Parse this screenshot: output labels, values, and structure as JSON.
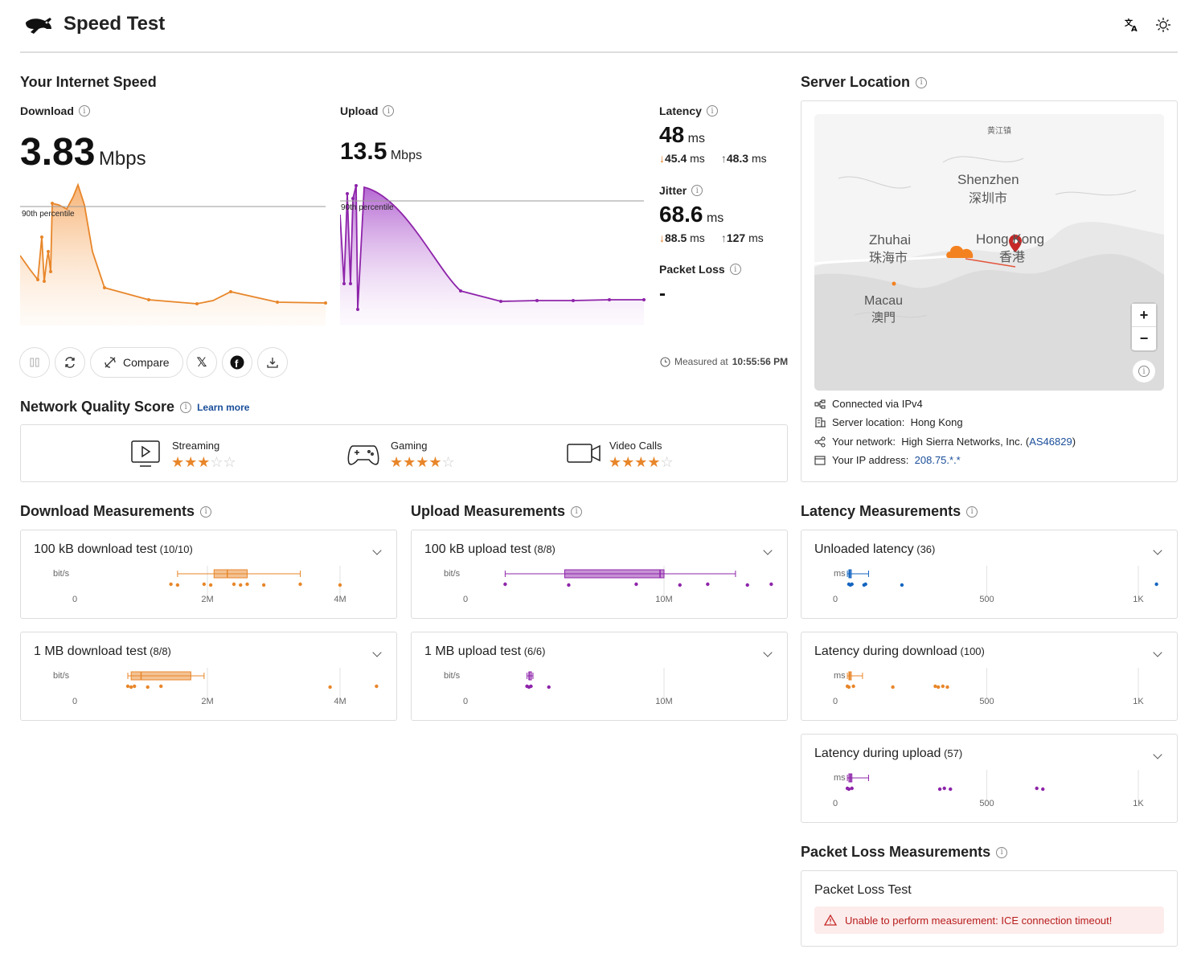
{
  "header": {
    "title": "Speed Test",
    "translate_icon": "translate-icon",
    "theme_icon": "sun-icon"
  },
  "speed": {
    "section_title": "Your Internet Speed",
    "download": {
      "label": "Download",
      "value": "3.83",
      "unit": "Mbps",
      "percentile_label": "90th percentile",
      "color": "#e8862a"
    },
    "upload": {
      "label": "Upload",
      "value": "13.5",
      "unit": "Mbps",
      "percentile_label": "90th percentile",
      "color": "#8e24aa"
    },
    "latency": {
      "label": "Latency",
      "value": "48",
      "unit": "ms",
      "down_value": "45.4",
      "down_unit": "ms",
      "up_value": "48.3",
      "up_unit": "ms"
    },
    "jitter": {
      "label": "Jitter",
      "value": "68.6",
      "unit": "ms",
      "down_value": "88.5",
      "down_unit": "ms",
      "up_value": "127",
      "up_unit": "ms"
    },
    "packet_loss": {
      "label": "Packet Loss",
      "value": "-"
    },
    "measured_prefix": "Measured at",
    "measured_time": "10:55:56 PM"
  },
  "actions": {
    "compare_label": "Compare"
  },
  "network_quality": {
    "title": "Network Quality Score",
    "learn_more": "Learn more",
    "items": [
      {
        "label": "Streaming",
        "stars": 3
      },
      {
        "label": "Gaming",
        "stars": 4
      },
      {
        "label": "Video Calls",
        "stars": 4
      }
    ]
  },
  "server": {
    "title": "Server Location",
    "map_labels": {
      "top": "黄江镇",
      "shenzhen": "Shenzhen",
      "shenzhen_cn": "深圳市",
      "zhuhai": "Zhuhai",
      "zhuhai_cn": "珠海市",
      "hongkong": "Hong Kong",
      "hongkong_cn": "香港",
      "macau": "Macau",
      "macau_cn": "澳門"
    },
    "zoom_in": "+",
    "zoom_out": "−",
    "info_label": "i",
    "connected_label": "Connected via",
    "connected_value": "IPv4",
    "location_label": "Server location:",
    "location_value": "Hong Kong",
    "network_label": "Your network:",
    "network_value": "High Sierra Networks, Inc. (",
    "network_as": "AS46829",
    "network_close": ")",
    "ip_label": "Your IP address:",
    "ip_value": "208.75.*.*"
  },
  "download_measurements": {
    "title": "Download Measurements",
    "tests": [
      {
        "name": "100 kB download test",
        "count": "(10/10)",
        "unit": "bit/s",
        "ticks": [
          "0",
          "2M",
          "4M"
        ],
        "box": [
          1.55,
          2.1,
          2.3,
          2.6,
          3.4
        ],
        "points": [
          1.45,
          1.55,
          1.95,
          2.05,
          2.4,
          2.5,
          2.6,
          2.85,
          3.4,
          4.0
        ],
        "max": 4.0
      },
      {
        "name": "1 MB download test",
        "count": "(8/8)",
        "unit": "bit/s",
        "ticks": [
          "0",
          "2M",
          "4M"
        ],
        "box": [
          0.8,
          0.85,
          1.0,
          1.75,
          1.95
        ],
        "points": [
          0.8,
          0.85,
          0.9,
          1.1,
          1.3,
          3.85,
          4.55
        ],
        "max": 4.0
      }
    ]
  },
  "upload_measurements": {
    "title": "Upload Measurements",
    "tests": [
      {
        "name": "100 kB upload test",
        "count": "(8/8)",
        "unit": "bit/s",
        "ticks": [
          "0",
          "10M"
        ],
        "box": [
          1.0,
          2.5,
          4.9,
          5.0,
          6.8
        ],
        "points": [
          1.0,
          2.6,
          4.3,
          5.4,
          6.1,
          7.1,
          7.7,
          8.2
        ],
        "max": 10.0
      },
      {
        "name": "1 MB upload test",
        "count": "(6/6)",
        "unit": "bit/s",
        "ticks": [
          "0",
          "10M"
        ],
        "box": [
          1.55,
          1.6,
          1.6,
          1.65,
          1.7
        ],
        "points": [
          1.55,
          1.6,
          1.65,
          2.1
        ],
        "max": 10.0
      }
    ]
  },
  "latency_measurements": {
    "title": "Latency Measurements",
    "tests": [
      {
        "name": "Unloaded latency",
        "count": "(36)",
        "unit": "ms",
        "ticks": [
          "0",
          "500",
          "1K"
        ],
        "color": "#1565c0",
        "box": [
          40,
          45,
          48,
          50,
          110
        ],
        "points": [
          45,
          50,
          55,
          95,
          100,
          220,
          1060
        ],
        "max": 1000
      },
      {
        "name": "Latency during download",
        "count": "(100)",
        "unit": "ms",
        "ticks": [
          "0",
          "500",
          "1K"
        ],
        "color": "#e8862a",
        "box": [
          40,
          45,
          48,
          52,
          90
        ],
        "points": [
          40,
          45,
          60,
          190,
          330,
          340,
          355,
          370
        ],
        "max": 1000
      },
      {
        "name": "Latency during upload",
        "count": "(57)",
        "unit": "ms",
        "ticks": [
          "0",
          "500",
          "1K"
        ],
        "color": "#8e24aa",
        "box": [
          40,
          45,
          50,
          55,
          110
        ],
        "points": [
          40,
          45,
          55,
          345,
          360,
          380,
          665,
          685
        ],
        "max": 1000
      }
    ]
  },
  "packet_loss_measurements": {
    "title": "Packet Loss Measurements",
    "test_name": "Packet Loss Test",
    "error": "Unable to perform measurement: ICE connection timeout!"
  }
}
